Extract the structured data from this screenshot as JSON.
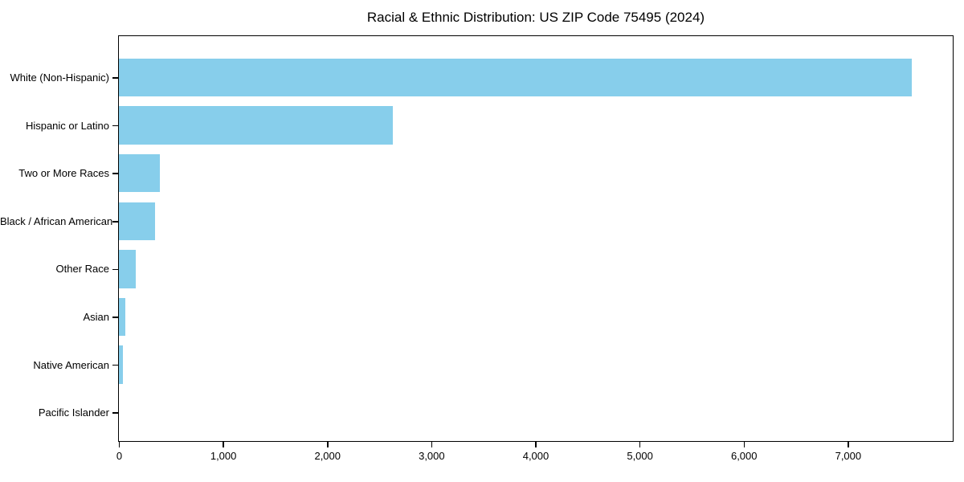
{
  "chart_data": {
    "type": "bar",
    "orientation": "horizontal",
    "title": "Racial & Ethnic Distribution: US ZIP Code 75495 (2024)",
    "categories": [
      "White (Non-Hispanic)",
      "Hispanic or Latino",
      "Two or More Races",
      "Black / African American",
      "Other Race",
      "Asian",
      "Native American",
      "Pacific Islander"
    ],
    "values": [
      7615,
      2630,
      390,
      345,
      160,
      60,
      40,
      0
    ],
    "xlabel": "",
    "ylabel": "",
    "xlim": [
      0,
      8000
    ],
    "x_ticks": [
      0,
      1000,
      2000,
      3000,
      4000,
      5000,
      6000,
      7000
    ],
    "x_tick_labels": [
      "0",
      "1,000",
      "2,000",
      "3,000",
      "4,000",
      "5,000",
      "6,000",
      "7,000"
    ],
    "bar_color": "#87CEEB",
    "grid": false,
    "legend": null
  }
}
